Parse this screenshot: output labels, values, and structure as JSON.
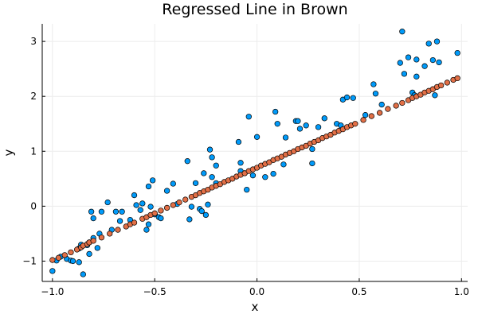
{
  "chart_data": {
    "type": "scatter",
    "title": "Regressed Line in Brown",
    "xlabel": "x",
    "ylabel": "y",
    "xlim": [
      -1.05,
      1.03
    ],
    "ylim": [
      -1.37,
      3.32
    ],
    "xticks": [
      -1.0,
      -0.5,
      0.0,
      0.5,
      1.0
    ],
    "xtick_labels": [
      "−1.0",
      "−0.5",
      "0.0",
      "0.5",
      "1.0"
    ],
    "yticks": [
      -1,
      0,
      1,
      2,
      3
    ],
    "ytick_labels": [
      "−1",
      "0",
      "1",
      "2",
      "3"
    ],
    "grid": true,
    "legend": "none",
    "series": [
      {
        "color": "#009af9",
        "points": [
          [
            -1.0,
            -1.18
          ],
          [
            -0.98,
            -0.99
          ],
          [
            -0.96,
            -0.92
          ],
          [
            -0.93,
            -0.96
          ],
          [
            -0.91,
            -0.99
          ],
          [
            -0.9,
            -1.0
          ],
          [
            -0.87,
            -1.02
          ],
          [
            -0.87,
            -0.77
          ],
          [
            -0.86,
            -0.7
          ],
          [
            -0.85,
            -1.24
          ],
          [
            -0.83,
            -0.71
          ],
          [
            -0.82,
            -0.66
          ],
          [
            -0.82,
            -0.87
          ],
          [
            -0.8,
            -0.58
          ],
          [
            -0.81,
            -0.1
          ],
          [
            -0.8,
            -0.22
          ],
          [
            -0.78,
            -0.76
          ],
          [
            -0.77,
            -0.5
          ],
          [
            -0.76,
            -0.1
          ],
          [
            -0.73,
            0.07
          ],
          [
            -0.71,
            -0.43
          ],
          [
            -0.69,
            -0.1
          ],
          [
            -0.67,
            -0.27
          ],
          [
            -0.66,
            -0.1
          ],
          [
            -0.62,
            -0.25
          ],
          [
            -0.6,
            0.2
          ],
          [
            -0.59,
            0.02
          ],
          [
            -0.57,
            -0.07
          ],
          [
            -0.56,
            0.05
          ],
          [
            -0.54,
            -0.43
          ],
          [
            -0.53,
            0.36
          ],
          [
            -0.53,
            -0.33
          ],
          [
            -0.52,
            -0.01
          ],
          [
            -0.51,
            0.47
          ],
          [
            -0.5,
            -0.15
          ],
          [
            -0.48,
            -0.2
          ],
          [
            -0.47,
            -0.22
          ],
          [
            -0.44,
            0.28
          ],
          [
            -0.41,
            0.41
          ],
          [
            -0.39,
            0.04
          ],
          [
            -0.34,
            0.82
          ],
          [
            -0.33,
            -0.24
          ],
          [
            -0.32,
            -0.01
          ],
          [
            -0.3,
            0.42
          ],
          [
            -0.28,
            -0.05
          ],
          [
            -0.27,
            -0.09
          ],
          [
            -0.26,
            0.6
          ],
          [
            -0.25,
            -0.16
          ],
          [
            -0.24,
            0.03
          ],
          [
            -0.23,
            1.03
          ],
          [
            -0.22,
            0.89
          ],
          [
            -0.22,
            0.53
          ],
          [
            -0.2,
            0.74
          ],
          [
            -0.2,
            0.42
          ],
          [
            -0.09,
            1.17
          ],
          [
            -0.08,
            0.79
          ],
          [
            -0.08,
            0.64
          ],
          [
            -0.06,
            0.6
          ],
          [
            -0.05,
            0.3
          ],
          [
            -0.04,
            1.63
          ],
          [
            -0.02,
            0.56
          ],
          [
            0.0,
            1.26
          ],
          [
            0.04,
            0.53
          ],
          [
            0.08,
            0.59
          ],
          [
            0.09,
            1.72
          ],
          [
            0.1,
            1.5
          ],
          [
            0.13,
            0.76
          ],
          [
            0.14,
            1.25
          ],
          [
            0.19,
            1.55
          ],
          [
            0.2,
            1.55
          ],
          [
            0.21,
            1.41
          ],
          [
            0.24,
            1.47
          ],
          [
            0.27,
            0.78
          ],
          [
            0.27,
            1.04
          ],
          [
            0.3,
            1.44
          ],
          [
            0.33,
            1.6
          ],
          [
            0.39,
            1.5
          ],
          [
            0.41,
            1.47
          ],
          [
            0.42,
            1.94
          ],
          [
            0.44,
            1.98
          ],
          [
            0.47,
            1.97
          ],
          [
            0.53,
            1.66
          ],
          [
            0.57,
            2.22
          ],
          [
            0.58,
            2.05
          ],
          [
            0.61,
            1.85
          ],
          [
            0.7,
            2.61
          ],
          [
            0.71,
            3.18
          ],
          [
            0.72,
            2.41
          ],
          [
            0.74,
            2.71
          ],
          [
            0.76,
            2.07
          ],
          [
            0.77,
            2.02
          ],
          [
            0.78,
            2.67
          ],
          [
            0.78,
            2.36
          ],
          [
            0.82,
            2.55
          ],
          [
            0.84,
            2.96
          ],
          [
            0.86,
            2.66
          ],
          [
            0.87,
            2.02
          ],
          [
            0.88,
            3.0
          ],
          [
            0.89,
            2.62
          ],
          [
            0.98,
            2.79
          ]
        ]
      },
      {
        "color": "#e26f46",
        "points": [
          [
            -1.0,
            -0.98
          ],
          [
            -0.97,
            -0.94
          ],
          [
            -0.94,
            -0.89
          ],
          [
            -0.91,
            -0.84
          ],
          [
            -0.88,
            -0.79
          ],
          [
            -0.86,
            -0.75
          ],
          [
            -0.85,
            -0.72
          ],
          [
            -0.83,
            -0.69
          ],
          [
            -0.82,
            -0.66
          ],
          [
            -0.8,
            -0.63
          ],
          [
            -0.76,
            -0.57
          ],
          [
            -0.72,
            -0.5
          ],
          [
            -0.68,
            -0.43
          ],
          [
            -0.64,
            -0.37
          ],
          [
            -0.62,
            -0.33
          ],
          [
            -0.6,
            -0.3
          ],
          [
            -0.56,
            -0.23
          ],
          [
            -0.54,
            -0.2
          ],
          [
            -0.52,
            -0.16
          ],
          [
            -0.5,
            -0.13
          ],
          [
            -0.47,
            -0.08
          ],
          [
            -0.44,
            -0.03
          ],
          [
            -0.41,
            0.02
          ],
          [
            -0.38,
            0.07
          ],
          [
            -0.35,
            0.12
          ],
          [
            -0.32,
            0.17
          ],
          [
            -0.3,
            0.2
          ],
          [
            -0.28,
            0.24
          ],
          [
            -0.26,
            0.27
          ],
          [
            -0.24,
            0.3
          ],
          [
            -0.22,
            0.34
          ],
          [
            -0.2,
            0.37
          ],
          [
            -0.18,
            0.4
          ],
          [
            -0.16,
            0.44
          ],
          [
            -0.14,
            0.47
          ],
          [
            -0.12,
            0.5
          ],
          [
            -0.1,
            0.54
          ],
          [
            -0.08,
            0.57
          ],
          [
            -0.06,
            0.6
          ],
          [
            -0.04,
            0.64
          ],
          [
            -0.02,
            0.67
          ],
          [
            0.0,
            0.7
          ],
          [
            0.02,
            0.74
          ],
          [
            0.04,
            0.77
          ],
          [
            0.06,
            0.8
          ],
          [
            0.08,
            0.84
          ],
          [
            0.1,
            0.87
          ],
          [
            0.12,
            0.9
          ],
          [
            0.14,
            0.94
          ],
          [
            0.16,
            0.97
          ],
          [
            0.18,
            1.0
          ],
          [
            0.2,
            1.04
          ],
          [
            0.22,
            1.07
          ],
          [
            0.24,
            1.1
          ],
          [
            0.26,
            1.14
          ],
          [
            0.28,
            1.17
          ],
          [
            0.3,
            1.2
          ],
          [
            0.32,
            1.24
          ],
          [
            0.34,
            1.27
          ],
          [
            0.36,
            1.3
          ],
          [
            0.38,
            1.34
          ],
          [
            0.4,
            1.37
          ],
          [
            0.42,
            1.4
          ],
          [
            0.44,
            1.44
          ],
          [
            0.46,
            1.47
          ],
          [
            0.48,
            1.5
          ],
          [
            0.52,
            1.57
          ],
          [
            0.56,
            1.64
          ],
          [
            0.6,
            1.7
          ],
          [
            0.64,
            1.77
          ],
          [
            0.68,
            1.83
          ],
          [
            0.71,
            1.88
          ],
          [
            0.74,
            1.93
          ],
          [
            0.76,
            1.97
          ],
          [
            0.78,
            2.0
          ],
          [
            0.8,
            2.03
          ],
          [
            0.82,
            2.07
          ],
          [
            0.84,
            2.1
          ],
          [
            0.86,
            2.13
          ],
          [
            0.88,
            2.17
          ],
          [
            0.9,
            2.2
          ],
          [
            0.93,
            2.25
          ],
          [
            0.96,
            2.3
          ],
          [
            0.98,
            2.33
          ]
        ]
      }
    ]
  }
}
